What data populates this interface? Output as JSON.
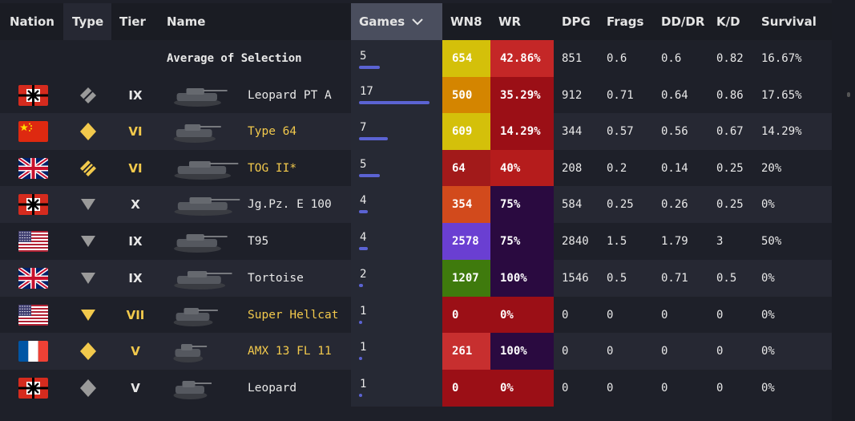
{
  "headers": {
    "nation": "Nation",
    "type": "Type",
    "tier": "Tier",
    "name": "Name",
    "games": "Games",
    "wn8": "WN8",
    "wr": "WR",
    "dpg": "DPG",
    "frags": "Frags",
    "dddr": "DD/DR",
    "kd": "K/D",
    "survival": "Survival"
  },
  "average": {
    "label": "Average of Selection",
    "games": "5",
    "games_fraction": 0.29,
    "wn8": "654",
    "wr": "42.86%",
    "dpg": "851",
    "frags": "0.6",
    "dddr": "0.6",
    "kd": "0.82",
    "survival": "16.67%",
    "wn8_color": "#d4c00a",
    "wr_color": "#c42727"
  },
  "rows": [
    {
      "nation": "germany",
      "type": "td",
      "type_icon": "td-tier-icon",
      "tier": "IX",
      "name": "Leopard PT A",
      "gold": false,
      "games": "17",
      "games_fraction": 1.0,
      "wn8": "500",
      "wr": "35.29%",
      "dpg": "912",
      "frags": "0.71",
      "dddr": "0.64",
      "kd": "0.86",
      "survival": "17.65%",
      "wn8_color": "#d48500",
      "wr_color": "#9b0f16"
    },
    {
      "nation": "china",
      "type": "mt",
      "type_icon": "medium-tank-icon",
      "tier": "VI",
      "name": "Type 64",
      "gold": true,
      "games": "7",
      "games_fraction": 0.41,
      "wn8": "609",
      "wr": "14.29%",
      "dpg": "344",
      "frags": "0.57",
      "dddr": "0.56",
      "kd": "0.67",
      "survival": "14.29%",
      "wn8_color": "#d4c00a",
      "wr_color": "#9b0f16"
    },
    {
      "nation": "uk",
      "type": "ht",
      "type_icon": "heavy-tank-icon",
      "tier": "VI",
      "name": "TOG II*",
      "gold": true,
      "games": "5",
      "games_fraction": 0.29,
      "wn8": "64",
      "wr": "40%",
      "dpg": "208",
      "frags": "0.2",
      "dddr": "0.14",
      "kd": "0.25",
      "survival": "20%",
      "wn8_color": "#a21a1a",
      "wr_color": "#b51c1c"
    },
    {
      "nation": "germany",
      "type": "spg",
      "type_icon": "td-icon",
      "tier": "X",
      "name": "Jg.Pz. E 100",
      "gold": false,
      "games": "4",
      "games_fraction": 0.12,
      "wn8": "354",
      "wr": "75%",
      "dpg": "584",
      "frags": "0.25",
      "dddr": "0.26",
      "kd": "0.25",
      "survival": "0%",
      "wn8_color": "#d24a1c",
      "wr_color": "#2a0a40"
    },
    {
      "nation": "usa",
      "type": "spg",
      "type_icon": "td-icon",
      "tier": "IX",
      "name": "T95",
      "gold": false,
      "games": "4",
      "games_fraction": 0.12,
      "wn8": "2578",
      "wr": "75%",
      "dpg": "2840",
      "frags": "1.5",
      "dddr": "1.79",
      "kd": "3",
      "survival": "50%",
      "wn8_color": "#6a3fd2",
      "wr_color": "#2a0a40"
    },
    {
      "nation": "uk",
      "type": "spg",
      "type_icon": "td-icon",
      "tier": "IX",
      "name": "Tortoise",
      "gold": false,
      "games": "2",
      "games_fraction": 0.06,
      "wn8": "1207",
      "wr": "100%",
      "dpg": "1546",
      "frags": "0.5",
      "dddr": "0.71",
      "kd": "0.5",
      "survival": "0%",
      "wn8_color": "#3f7a0d",
      "wr_color": "#2a0a40"
    },
    {
      "nation": "usa",
      "type": "spg",
      "type_icon": "td-icon",
      "tier": "VII",
      "name": "Super Hellcat",
      "gold": true,
      "games": "1",
      "games_fraction": 0.0,
      "wn8": "0",
      "wr": "0%",
      "dpg": "0",
      "frags": "0",
      "dddr": "0",
      "kd": "0",
      "survival": "0%",
      "wn8_color": "#9b0f16",
      "wr_color": "#9b0f16"
    },
    {
      "nation": "france",
      "type": "mt",
      "type_icon": "medium-tank-icon",
      "tier": "V",
      "name": "AMX 13 FL 11",
      "gold": true,
      "games": "1",
      "games_fraction": 0.0,
      "wn8": "261",
      "wr": "100%",
      "dpg": "0",
      "frags": "0",
      "dddr": "0",
      "kd": "0",
      "survival": "0%",
      "wn8_color": "#c72f2f",
      "wr_color": "#2a0a40"
    },
    {
      "nation": "germany",
      "type": "mt",
      "type_icon": "medium-tank-icon",
      "tier": "V",
      "name": "Leopard",
      "gold": false,
      "games": "1",
      "games_fraction": 0.0,
      "wn8": "0",
      "wr": "0%",
      "dpg": "0",
      "frags": "0",
      "dddr": "0",
      "kd": "0",
      "survival": "0%",
      "wn8_color": "#9b0f16",
      "wr_color": "#9b0f16"
    }
  ]
}
